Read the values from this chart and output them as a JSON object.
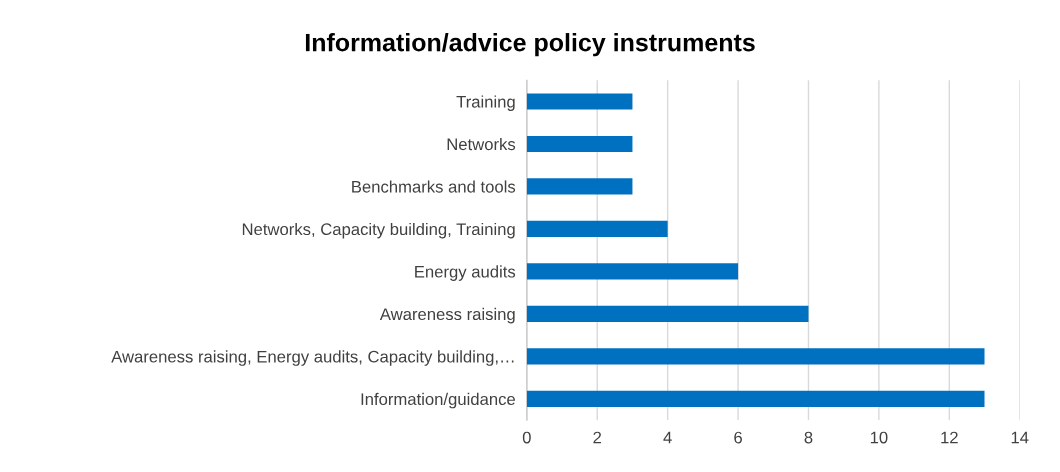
{
  "chart_data": {
    "type": "bar",
    "orientation": "horizontal",
    "title": "Information/advice policy instruments",
    "categories": [
      "Training",
      "Networks",
      "Benchmarks and tools",
      "Networks, Capacity building, Training",
      "Energy audits",
      "Awareness raising",
      "Awareness raising, Energy audits, Capacity building,…",
      "Information/guidance"
    ],
    "values": [
      3,
      3,
      3,
      4,
      6,
      8,
      13,
      13
    ],
    "color": "#0070c0",
    "xlim": [
      0,
      14
    ],
    "xticks": [
      0,
      2,
      4,
      6,
      8,
      10,
      12,
      14
    ],
    "grid": "x"
  }
}
